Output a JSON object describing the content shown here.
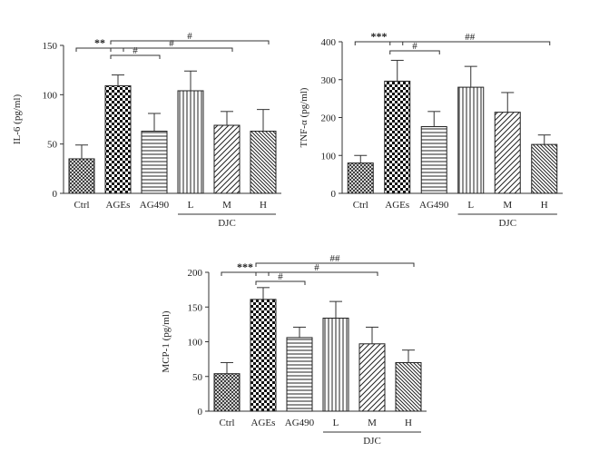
{
  "chart_data": [
    {
      "type": "bar",
      "ylabel": "IL-6 (pg/ml)",
      "categories": [
        "Ctrl",
        "AGEs",
        "AG490",
        "L",
        "M",
        "H"
      ],
      "group_label": "DJC",
      "values": [
        35,
        109,
        63,
        104,
        69,
        63
      ],
      "errors": [
        14,
        11,
        18,
        20,
        14,
        22
      ],
      "ylim": [
        0,
        150
      ],
      "yticks": [
        0,
        50,
        100,
        150
      ],
      "patterns": [
        "crosshatch",
        "checker",
        "horizontal",
        "vertical",
        "diagonal-up",
        "diagonal-down"
      ],
      "significance": [
        {
          "from": 0,
          "to": 1,
          "label": "**"
        },
        {
          "from": 1,
          "to": 2,
          "label": "#"
        },
        {
          "from": 1,
          "to": 4,
          "label": "#"
        },
        {
          "from": 1,
          "to": 5,
          "label": "#"
        }
      ]
    },
    {
      "type": "bar",
      "ylabel": "TNF-α (pg/ml)",
      "categories": [
        "Ctrl",
        "AGEs",
        "AG490",
        "L",
        "M",
        "H"
      ],
      "group_label": "DJC",
      "values": [
        80,
        296,
        176,
        280,
        214,
        129
      ],
      "errors": [
        20,
        55,
        40,
        55,
        52,
        25
      ],
      "ylim": [
        0,
        400
      ],
      "yticks": [
        0,
        100,
        200,
        300,
        400
      ],
      "patterns": [
        "crosshatch",
        "checker",
        "horizontal",
        "vertical",
        "diagonal-up",
        "diagonal-down"
      ],
      "significance": [
        {
          "from": 0,
          "to": 1,
          "label": "***"
        },
        {
          "from": 1,
          "to": 2,
          "label": "#"
        },
        {
          "from": 1,
          "to": 5,
          "label": "##"
        }
      ]
    },
    {
      "type": "bar",
      "ylabel": "MCP-1 (pg/ml)",
      "categories": [
        "Ctrl",
        "AGEs",
        "AG490",
        "L",
        "M",
        "H"
      ],
      "group_label": "DJC",
      "values": [
        54,
        161,
        106,
        134,
        97,
        70
      ],
      "errors": [
        16,
        17,
        15,
        24,
        24,
        18
      ],
      "ylim": [
        0,
        200
      ],
      "yticks": [
        0,
        50,
        100,
        150,
        200
      ],
      "patterns": [
        "crosshatch",
        "checker",
        "horizontal",
        "vertical",
        "diagonal-up",
        "diagonal-down"
      ],
      "significance": [
        {
          "from": 0,
          "to": 1,
          "label": "***"
        },
        {
          "from": 1,
          "to": 2,
          "label": "#"
        },
        {
          "from": 1,
          "to": 4,
          "label": "#"
        },
        {
          "from": 1,
          "to": 5,
          "label": "##"
        }
      ]
    }
  ]
}
